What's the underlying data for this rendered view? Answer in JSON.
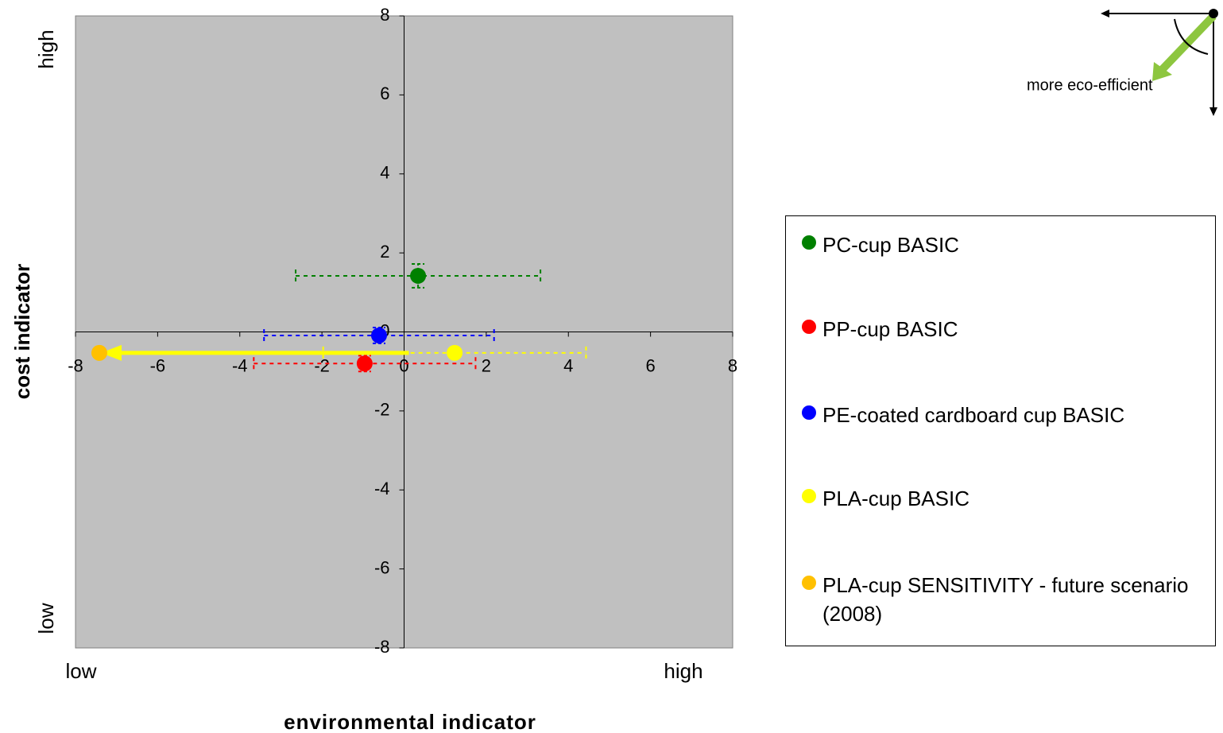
{
  "chart_data": {
    "type": "scatter",
    "xlabel": "environmental indicator",
    "ylabel": "cost indicator",
    "x_low": "low",
    "x_high": "high",
    "y_low": "low",
    "y_high": "high",
    "annotation": "more eco-efficient",
    "xlim": [
      -8,
      8
    ],
    "ylim": [
      -8,
      8
    ],
    "xticks": [
      -8,
      -6,
      -4,
      -2,
      0,
      2,
      4,
      6,
      8
    ],
    "yticks": [
      -8,
      -6,
      -4,
      -2,
      0,
      2,
      4,
      6,
      8
    ],
    "series": [
      {
        "name": "PC-cup BASIC",
        "color": "#008000",
        "x": [
          0.34
        ],
        "values": [
          1.42
        ],
        "xerr": [
          2.98
        ],
        "yerr": [
          0.3
        ]
      },
      {
        "name": "PP-cup BASIC",
        "color": "#ff0000",
        "x": [
          -0.96
        ],
        "values": [
          -0.8
        ],
        "xerr": [
          2.7
        ],
        "yerr": [
          0.2
        ]
      },
      {
        "name": "PE-coated cardboard cup BASIC",
        "color": "#0000ff",
        "x": [
          -0.61
        ],
        "values": [
          -0.09
        ],
        "xerr": [
          2.8
        ],
        "yerr": [
          0.2
        ]
      },
      {
        "name": "PLA-cup BASIC",
        "color": "#ffff00",
        "x": [
          1.23
        ],
        "values": [
          -0.53
        ],
        "xerr": [
          3.2
        ]
      },
      {
        "name": "PLA-cup SENSITIVITY - future scenario (2008)",
        "color": "#ffc000",
        "x": [
          -7.42
        ],
        "values": [
          -0.53
        ]
      }
    ]
  }
}
